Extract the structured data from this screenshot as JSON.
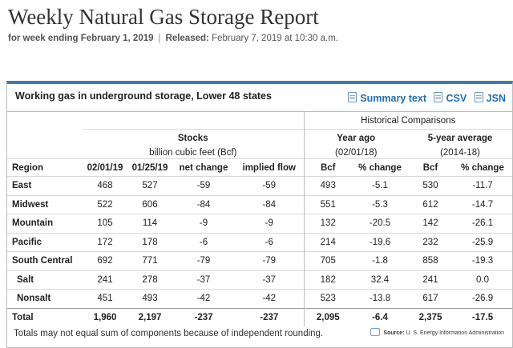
{
  "header": {
    "title": "Weekly Natural Gas Storage Report",
    "week_label": "for week ending February 1, 2019",
    "separator": "|",
    "released_label": "Released:",
    "released_value": "February 7, 2019 at 10:30 a.m."
  },
  "panel": {
    "title": "Working gas in underground storage, Lower 48 states",
    "links": [
      "Summary text",
      "CSV",
      "JSN"
    ]
  },
  "table": {
    "historical_label": "Historical Comparisons",
    "stocks_label": "Stocks",
    "stocks_units": "billion cubic feet (Bcf)",
    "year_ago_label": "Year ago",
    "year_ago_date": "(02/01/18)",
    "five_year_label": "5-year average",
    "five_year_range": "(2014-18)",
    "columns": [
      "Region",
      "02/01/19",
      "01/25/19",
      "net change",
      "implied flow",
      "Bcf",
      "% change",
      "Bcf",
      "% change"
    ],
    "rows": [
      {
        "region": "East",
        "cells": [
          "468",
          "527",
          "-59",
          "-59",
          "493",
          "-5.1",
          "530",
          "-11.7"
        ]
      },
      {
        "region": "Midwest",
        "cells": [
          "522",
          "606",
          "-84",
          "-84",
          "551",
          "-5.3",
          "612",
          "-14.7"
        ]
      },
      {
        "region": "Mountain",
        "cells": [
          "105",
          "114",
          "-9",
          "-9",
          "132",
          "-20.5",
          "142",
          "-26.1"
        ]
      },
      {
        "region": "Pacific",
        "cells": [
          "172",
          "178",
          "-6",
          "-6",
          "214",
          "-19.6",
          "232",
          "-25.9"
        ]
      },
      {
        "region": "South Central",
        "cells": [
          "692",
          "771",
          "-79",
          "-79",
          "705",
          "-1.8",
          "858",
          "-19.3"
        ]
      },
      {
        "region": "Salt",
        "cells": [
          "241",
          "278",
          "-37",
          "-37",
          "182",
          "32.4",
          "241",
          "0.0"
        ]
      },
      {
        "region": "Nonsalt",
        "cells": [
          "451",
          "493",
          "-42",
          "-42",
          "523",
          "-13.8",
          "617",
          "-26.9"
        ]
      },
      {
        "region": "Total",
        "cells": [
          "1,960",
          "2,197",
          "-237",
          "-237",
          "2,095",
          "-6.4",
          "2,375",
          "-17.5"
        ]
      }
    ]
  },
  "footnote": "Totals may not equal sum of components because of independent rounding.",
  "source": {
    "label": "Source:",
    "value": "U. S. Energy Information Administration"
  }
}
